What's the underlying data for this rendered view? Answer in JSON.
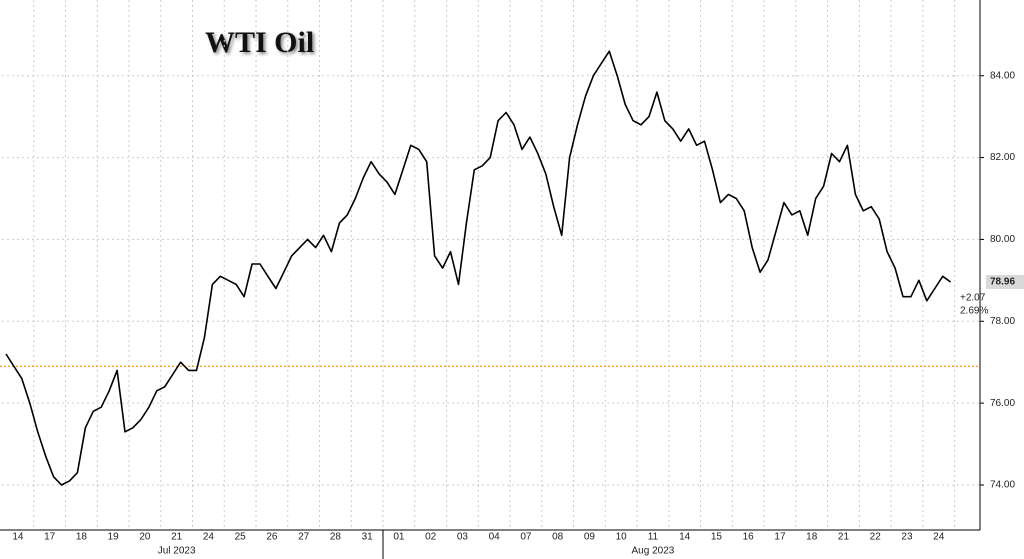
{
  "chart_data": {
    "type": "line",
    "title": "WTI Oil",
    "x": [
      0.125,
      0.375,
      0.625,
      0.875,
      1.125,
      1.375,
      1.625,
      1.875,
      2.125,
      2.375,
      2.625,
      2.875,
      3.125,
      3.375,
      3.625,
      3.875,
      4.125,
      4.375,
      4.625,
      4.875,
      5.125,
      5.375,
      5.625,
      5.875,
      6.125,
      6.375,
      6.625,
      6.875,
      7.125,
      7.375,
      7.625,
      7.875,
      8.125,
      8.375,
      8.625,
      8.875,
      9.125,
      9.375,
      9.625,
      9.875,
      10.125,
      10.375,
      10.625,
      10.875,
      11.125,
      11.375,
      11.625,
      11.875,
      12.125,
      12.375,
      12.625,
      12.875,
      13.125,
      13.375,
      13.625,
      13.875,
      14.125,
      14.375,
      14.625,
      14.875,
      15.125,
      15.375,
      15.625,
      15.875,
      16.125,
      16.375,
      16.625,
      16.875,
      17.125,
      17.375,
      17.625,
      17.875,
      18.125,
      18.375,
      18.625,
      18.875,
      19.125,
      19.375,
      19.625,
      19.875,
      20.125,
      20.375,
      20.625,
      20.875,
      21.125,
      21.375,
      21.625,
      21.875,
      22.125,
      22.375,
      22.625,
      22.875,
      23.125,
      23.375,
      23.625,
      23.875,
      24.125,
      24.375,
      24.625,
      24.875,
      25.125,
      25.375,
      25.625,
      25.875,
      26.125,
      26.375,
      26.625,
      26.875,
      27.125,
      27.375,
      27.625,
      27.875,
      28.125,
      28.375,
      28.625,
      28.875,
      29.125,
      29.375,
      29.625,
      29.875
    ],
    "series": [
      {
        "color": "#000000",
        "values": [
          77.2,
          76.9,
          76.6,
          76.0,
          75.3,
          74.7,
          74.2,
          74.0,
          74.1,
          74.3,
          75.4,
          75.8,
          75.9,
          76.3,
          76.8,
          75.3,
          75.4,
          75.6,
          75.9,
          76.3,
          76.4,
          76.7,
          77.0,
          76.8,
          76.8,
          77.6,
          78.9,
          79.1,
          79.0,
          78.9,
          78.6,
          79.4,
          79.4,
          79.1,
          78.8,
          79.2,
          79.6,
          79.8,
          80.0,
          79.8,
          80.1,
          79.7,
          80.4,
          80.6,
          81.0,
          81.5,
          81.9,
          81.6,
          81.4,
          81.1,
          81.7,
          82.3,
          82.2,
          81.9,
          79.6,
          79.3,
          79.7,
          78.9,
          80.4,
          81.7,
          81.8,
          82.0,
          82.9,
          83.1,
          82.8,
          82.2,
          82.5,
          82.1,
          81.6,
          80.8,
          80.1,
          82.0,
          82.8,
          83.5,
          84.0,
          84.3,
          84.6,
          84.0,
          83.3,
          82.9,
          82.8,
          83.0,
          83.6,
          82.9,
          82.7,
          82.4,
          82.7,
          82.3,
          82.4,
          81.7,
          80.9,
          81.1,
          81.0,
          80.7,
          79.8,
          79.2,
          79.5,
          80.2,
          80.9,
          80.6,
          80.7,
          80.1,
          81.0,
          81.3,
          82.1,
          81.9,
          82.3,
          81.1,
          80.7,
          80.8,
          80.5,
          79.7,
          79.3,
          78.6,
          78.6,
          79.0,
          78.5,
          78.8,
          79.1,
          78.96
        ]
      }
    ],
    "xlim": [
      0,
      30.8
    ],
    "xticks": [
      {
        "value": 0.5,
        "label": "14"
      },
      {
        "value": 1.5,
        "label": "17"
      },
      {
        "value": 2.5,
        "label": "18"
      },
      {
        "value": 3.5,
        "label": "19"
      },
      {
        "value": 4.5,
        "label": "20"
      },
      {
        "value": 5.5,
        "label": "21"
      },
      {
        "value": 6.5,
        "label": "24"
      },
      {
        "value": 7.5,
        "label": "25"
      },
      {
        "value": 8.5,
        "label": "26"
      },
      {
        "value": 9.5,
        "label": "27"
      },
      {
        "value": 10.5,
        "label": "28"
      },
      {
        "value": 11.5,
        "label": "31"
      },
      {
        "value": 12.5,
        "label": "01"
      },
      {
        "value": 13.5,
        "label": "02"
      },
      {
        "value": 14.5,
        "label": "03"
      },
      {
        "value": 15.5,
        "label": "04"
      },
      {
        "value": 16.5,
        "label": "07"
      },
      {
        "value": 17.5,
        "label": "08"
      },
      {
        "value": 18.5,
        "label": "09"
      },
      {
        "value": 19.5,
        "label": "10"
      },
      {
        "value": 20.5,
        "label": "11"
      },
      {
        "value": 21.5,
        "label": "14"
      },
      {
        "value": 22.5,
        "label": "15"
      },
      {
        "value": 23.5,
        "label": "16"
      },
      {
        "value": 24.5,
        "label": "17"
      },
      {
        "value": 25.5,
        "label": "18"
      },
      {
        "value": 26.5,
        "label": "21"
      },
      {
        "value": 27.5,
        "label": "22"
      },
      {
        "value": 28.5,
        "label": "23"
      },
      {
        "value": 29.5,
        "label": "24"
      }
    ],
    "months": [
      {
        "value": 5.5,
        "label": "Jul 2023"
      },
      {
        "value": 20.5,
        "label": "Aug 2023"
      }
    ],
    "ylim": [
      72.9,
      85.85
    ],
    "yticks": [
      {
        "value": 74,
        "label": "74.00"
      },
      {
        "value": 76,
        "label": "76.00"
      },
      {
        "value": 78,
        "label": "78.00"
      },
      {
        "value": 80,
        "label": "80.00"
      },
      {
        "value": 82,
        "label": "82.00"
      },
      {
        "value": 84,
        "label": "84.00"
      }
    ],
    "reference_line": {
      "value": 76.9,
      "color": "#ff8c00"
    },
    "last_label": "78.96",
    "annotations": [
      "+2.07",
      "2.69%"
    ],
    "grid": true
  }
}
